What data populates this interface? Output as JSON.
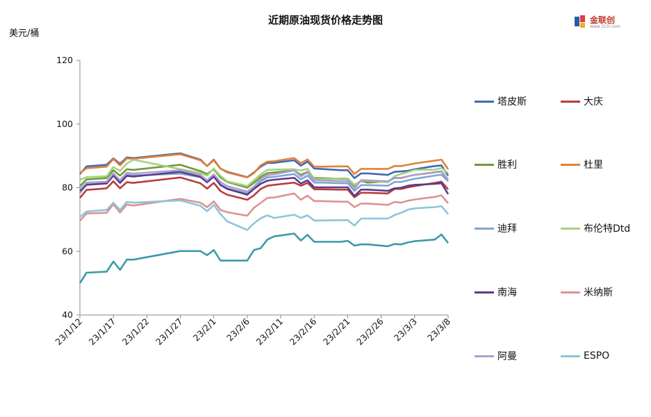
{
  "header": {
    "title": "近期原油现货价格走势图",
    "unit_label": "美元/桶",
    "logo_text": "金联创",
    "logo_sub": "www.315i.com"
  },
  "chart_data": {
    "type": "line",
    "title": "近期原油现货价格走势图",
    "ylabel": "美元/桶",
    "xlabel": "",
    "ylim": [
      40,
      120
    ],
    "yticks": [
      40,
      60,
      80,
      100,
      120
    ],
    "grid": false,
    "legend_position": "right",
    "x_tick_labels": [
      "23/1/12",
      "23/1/17",
      "23/1/22",
      "23/1/27",
      "23/2/1",
      "23/2/6",
      "23/2/11",
      "23/2/16",
      "23/2/21",
      "23/2/26",
      "23/3/3",
      "23/3/8"
    ],
    "x_start": "2023-01-12",
    "x_end": "2023-03-08",
    "x": [
      "2023-01-12",
      "2023-01-13",
      "2023-01-16",
      "2023-01-17",
      "2023-01-18",
      "2023-01-19",
      "2023-01-20",
      "2023-01-27",
      "2023-01-30",
      "2023-01-31",
      "2023-02-01",
      "2023-02-02",
      "2023-02-03",
      "2023-02-06",
      "2023-02-07",
      "2023-02-08",
      "2023-02-09",
      "2023-02-10",
      "2023-02-13",
      "2023-02-14",
      "2023-02-15",
      "2023-02-16",
      "2023-02-17",
      "2023-02-20",
      "2023-02-21",
      "2023-02-22",
      "2023-02-23",
      "2023-02-24",
      "2023-02-27",
      "2023-02-28",
      "2023-03-01",
      "2023-03-02",
      "2023-03-03",
      "2023-03-06",
      "2023-03-07",
      "2023-03-08"
    ],
    "series": [
      {
        "name": "塔皮斯",
        "color": "#3c6aaf",
        "values": [
          84.3,
          86.7,
          87.2,
          89.2,
          87.5,
          89.5,
          89.3,
          90.8,
          88.8,
          86.8,
          88.8,
          86.0,
          85.0,
          83.3,
          84.8,
          86.6,
          87.8,
          87.8,
          88.6,
          86.9,
          88.2,
          86.0,
          85.9,
          85.5,
          85.5,
          83.0,
          84.5,
          84.5,
          84.0,
          85.0,
          85.1,
          85.3,
          85.8,
          86.8,
          87.0,
          83.8
        ]
      },
      {
        "name": "大庆",
        "color": "#b83c3c",
        "values": [
          76.8,
          79.3,
          79.8,
          82.0,
          79.8,
          81.7,
          81.5,
          83.2,
          81.4,
          79.7,
          81.5,
          78.9,
          77.8,
          76.2,
          77.6,
          79.6,
          80.6,
          80.9,
          81.6,
          80.6,
          81.5,
          79.5,
          79.5,
          79.4,
          79.4,
          77.0,
          78.4,
          78.4,
          78.2,
          79.6,
          79.6,
          80.1,
          80.5,
          81.5,
          81.9,
          79.5
        ]
      },
      {
        "name": "胜利",
        "color": "#6f9a3a",
        "values": [
          80.5,
          82.6,
          83.0,
          85.5,
          83.8,
          85.8,
          85.6,
          87.2,
          85.2,
          84.3,
          85.8,
          83.2,
          81.8,
          80.0,
          81.5,
          83.4,
          84.6,
          84.8,
          85.4,
          84.0,
          85.0,
          83.0,
          83.0,
          82.8,
          82.8,
          80.6,
          82.1,
          81.6,
          82.0,
          83.0,
          83.0,
          83.6,
          84.0,
          84.8,
          85.1,
          82.6
        ]
      },
      {
        "name": "杜里",
        "color": "#e0803a",
        "values": [
          84.6,
          86.1,
          86.6,
          89.0,
          87.0,
          89.2,
          89.1,
          90.5,
          88.6,
          86.8,
          88.6,
          86.0,
          84.8,
          83.2,
          84.6,
          87.0,
          88.2,
          88.3,
          89.3,
          87.7,
          88.9,
          86.6,
          86.6,
          86.7,
          86.7,
          84.3,
          85.9,
          85.9,
          85.9,
          86.8,
          86.8,
          87.2,
          87.6,
          88.5,
          88.8,
          85.8
        ]
      },
      {
        "name": "迪拜",
        "color": "#7fa6d0",
        "values": [
          78.3,
          81.0,
          81.6,
          84.0,
          82.0,
          84.1,
          83.8,
          84.4,
          83.3,
          81.6,
          83.5,
          81.0,
          79.8,
          78.2,
          79.6,
          82.0,
          83.2,
          83.4,
          84.3,
          82.6,
          83.8,
          81.6,
          81.6,
          81.4,
          81.4,
          79.0,
          80.8,
          80.8,
          80.6,
          81.8,
          81.8,
          82.3,
          82.8,
          83.8,
          84.1,
          82.0
        ]
      },
      {
        "name": "布伦特Dtd",
        "color": "#a6d081",
        "values": [
          82.5,
          83.3,
          83.6,
          86.5,
          85.3,
          87.6,
          88.8,
          85.8,
          84.6,
          83.8,
          86.0,
          83.7,
          82.0,
          80.5,
          82.3,
          84.2,
          85.6,
          85.7,
          85.8,
          85.4,
          85.9,
          82.7,
          82.7,
          82.9,
          82.9,
          80.9,
          82.2,
          82.2,
          81.7,
          83.6,
          84.3,
          84.9,
          85.6,
          85.7,
          86.2,
          84.6
        ]
      },
      {
        "name": "南海",
        "color": "#5b3a8a",
        "values": [
          79.0,
          80.9,
          81.3,
          83.8,
          81.5,
          83.7,
          83.5,
          85.0,
          83.4,
          81.8,
          83.5,
          80.8,
          79.6,
          77.8,
          79.6,
          81.2,
          82.2,
          82.5,
          83.1,
          81.3,
          82.3,
          80.1,
          80.1,
          80.1,
          80.1,
          77.4,
          79.4,
          79.4,
          79.0,
          79.8,
          80.0,
          80.6,
          80.9,
          81.2,
          81.4,
          78.0
        ]
      },
      {
        "name": "米纳斯",
        "color": "#dc9292",
        "values": [
          69.6,
          71.9,
          72.1,
          74.8,
          72.2,
          74.7,
          74.4,
          76.5,
          75.3,
          73.9,
          75.7,
          73.0,
          72.3,
          71.2,
          73.7,
          75.2,
          76.8,
          76.9,
          78.2,
          76.2,
          77.5,
          75.8,
          75.8,
          75.6,
          75.6,
          73.9,
          75.0,
          75.0,
          74.6,
          75.5,
          75.3,
          75.9,
          76.3,
          77.1,
          77.6,
          75.1
        ]
      },
      {
        "name": "阿曼",
        "color": "#ad9fd0",
        "values": [
          79.5,
          81.6,
          81.9,
          84.5,
          82.3,
          84.7,
          84.4,
          85.5,
          84.0,
          82.3,
          84.2,
          81.8,
          80.5,
          78.8,
          80.3,
          82.7,
          83.9,
          84.2,
          85.4,
          83.5,
          84.8,
          82.3,
          82.3,
          82.1,
          82.1,
          79.7,
          82.4,
          82.3,
          82.0,
          83.1,
          83.1,
          83.6,
          84.0,
          84.9,
          85.2,
          82.6
        ]
      },
      {
        "name": "ESPO",
        "color": "#8ec4da",
        "values": [
          70.8,
          72.5,
          73.0,
          75.3,
          73.0,
          75.5,
          75.3,
          76.0,
          74.3,
          72.6,
          74.6,
          71.7,
          69.4,
          66.7,
          68.8,
          70.4,
          71.3,
          70.5,
          71.5,
          70.5,
          71.3,
          69.7,
          69.7,
          69.8,
          69.8,
          68.1,
          70.3,
          70.3,
          70.3,
          71.4,
          72.1,
          73.1,
          73.5,
          73.9,
          74.2,
          71.7
        ]
      },
      {
        "name": "",
        "color": "#3a9aa8",
        "values": [
          50.0,
          53.3,
          53.6,
          56.8,
          54.2,
          57.4,
          57.4,
          60.1,
          60.1,
          58.8,
          60.4,
          57.1,
          57.1,
          57.1,
          60.4,
          61.0,
          63.7,
          64.7,
          65.6,
          63.4,
          65.2,
          63.0,
          63.0,
          63.0,
          63.3,
          61.8,
          62.2,
          62.2,
          61.6,
          62.3,
          62.2,
          62.8,
          63.2,
          63.7,
          65.3,
          62.6
        ]
      }
    ]
  }
}
